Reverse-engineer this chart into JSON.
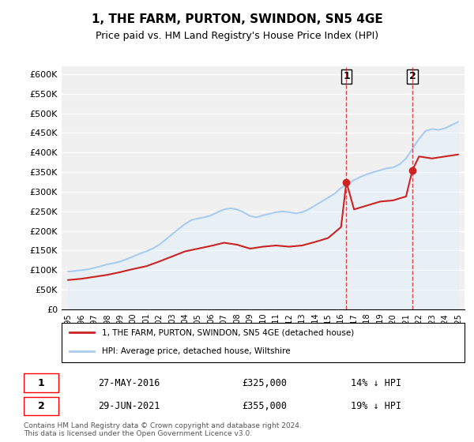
{
  "title": "1, THE FARM, PURTON, SWINDON, SN5 4GE",
  "subtitle": "Price paid vs. HM Land Registry's House Price Index (HPI)",
  "xlabel": "",
  "ylabel": "",
  "ylim": [
    0,
    620000
  ],
  "yticks": [
    0,
    50000,
    100000,
    150000,
    200000,
    250000,
    300000,
    350000,
    400000,
    450000,
    500000,
    550000,
    600000
  ],
  "ytick_labels": [
    "£0",
    "£50K",
    "£100K",
    "£150K",
    "£200K",
    "£250K",
    "£300K",
    "£350K",
    "£400K",
    "£450K",
    "£500K",
    "£550K",
    "£600K"
  ],
  "background_color": "#ffffff",
  "plot_bg_color": "#f0f0f0",
  "grid_color": "#ffffff",
  "hpi_color": "#aaccee",
  "hpi_fill_color": "#ddeeff",
  "price_color": "#cc2222",
  "sale1_date": 2016.41,
  "sale1_price": 325000,
  "sale1_label": "1",
  "sale2_date": 2021.49,
  "sale2_price": 355000,
  "sale2_label": "2",
  "legend_label_price": "1, THE FARM, PURTON, SWINDON, SN5 4GE (detached house)",
  "legend_label_hpi": "HPI: Average price, detached house, Wiltshire",
  "footnote": "Contains HM Land Registry data © Crown copyright and database right 2024.\nThis data is licensed under the Open Government Licence v3.0.",
  "table_row1": [
    "1",
    "27-MAY-2016",
    "£325,000",
    "14% ↓ HPI"
  ],
  "table_row2": [
    "2",
    "29-JUN-2021",
    "£355,000",
    "19% ↓ HPI"
  ]
}
